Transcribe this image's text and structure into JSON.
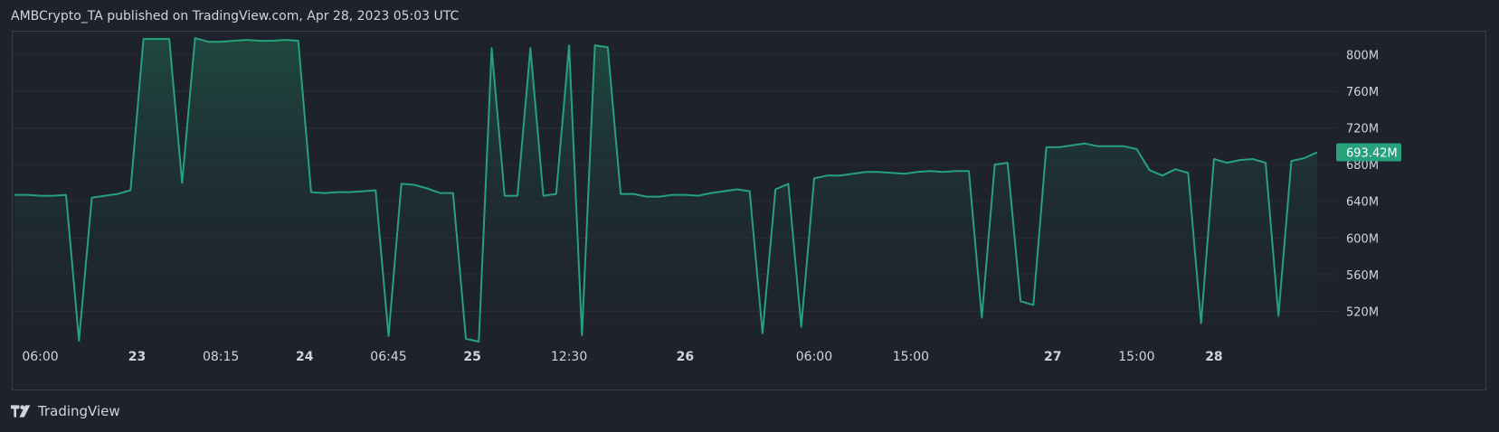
{
  "header": {
    "text": "AMBCrypto_TA published on TradingView.com, Apr 28, 2023 05:03 UTC"
  },
  "footer": {
    "brand": "TradingView"
  },
  "colors": {
    "background": "#1e222d",
    "line": "#26a17b",
    "fill_top": "#1e4a40",
    "fill_bottom": "#1e222d",
    "grid": "#2a2e39",
    "border": "#363a45",
    "text": "#d1d4dc",
    "last_value_badge": "#26a17b"
  },
  "chart_data": {
    "type": "area",
    "title": "",
    "xlabel": "",
    "ylabel": "",
    "ylim": [
      485,
      825
    ],
    "y_ticks": [
      {
        "value": 800,
        "label": "800M"
      },
      {
        "value": 760,
        "label": "760M"
      },
      {
        "value": 720,
        "label": "720M"
      },
      {
        "value": 680,
        "label": "680M"
      },
      {
        "value": 640,
        "label": "640M"
      },
      {
        "value": 600,
        "label": "600M"
      },
      {
        "value": 560,
        "label": "560M"
      },
      {
        "value": 520,
        "label": "520M"
      }
    ],
    "x_ticks": [
      {
        "index": 2,
        "label": "06:00",
        "bold": false
      },
      {
        "index": 9.5,
        "label": "23",
        "bold": true
      },
      {
        "index": 16,
        "label": "08:15",
        "bold": false
      },
      {
        "index": 22.5,
        "label": "24",
        "bold": true
      },
      {
        "index": 29,
        "label": "06:45",
        "bold": false
      },
      {
        "index": 35.5,
        "label": "25",
        "bold": true
      },
      {
        "index": 43,
        "label": "12:30",
        "bold": false
      },
      {
        "index": 52,
        "label": "26",
        "bold": true
      },
      {
        "index": 62,
        "label": "06:00",
        "bold": false
      },
      {
        "index": 69.5,
        "label": "15:00",
        "bold": false
      },
      {
        "index": 80.5,
        "label": "27",
        "bold": true
      },
      {
        "index": 87,
        "label": "15:00",
        "bold": false
      },
      {
        "index": 93,
        "label": "28",
        "bold": true
      }
    ],
    "last_value": {
      "value": 693.42,
      "label": "693.42M"
    },
    "series": [
      {
        "values": [
          647,
          647,
          646,
          646,
          647,
          488,
          644,
          646,
          648,
          652,
          817,
          817,
          817,
          660,
          818,
          814,
          814,
          815,
          816,
          815,
          815,
          816,
          815,
          650,
          649,
          650,
          650,
          651,
          652,
          493,
          659,
          658,
          654,
          649,
          649,
          490,
          487,
          807,
          646,
          646,
          807,
          646,
          648,
          810,
          494,
          810,
          808,
          648,
          648,
          645,
          645,
          647,
          647,
          646,
          649,
          651,
          653,
          651,
          496,
          653,
          659,
          503,
          665,
          668,
          668,
          670,
          672,
          672,
          671,
          670,
          672,
          673,
          672,
          673,
          673,
          513,
          680,
          682,
          531,
          527,
          699,
          699,
          701,
          703,
          700,
          700,
          700,
          697,
          674,
          668,
          675,
          671,
          507,
          686,
          682,
          685,
          686,
          682,
          515,
          684,
          687,
          693.42
        ]
      }
    ]
  }
}
